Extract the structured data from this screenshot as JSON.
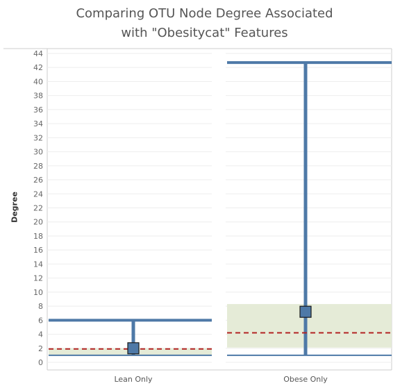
{
  "chart_data": {
    "type": "box",
    "title_line1": "Comparing OTU Node Degree Associated",
    "title_line2": "with \"Obesitycat\" Features",
    "ylabel": "Degree",
    "ylim": [
      0,
      45
    ],
    "yticks": [
      0,
      2,
      4,
      6,
      8,
      10,
      12,
      14,
      16,
      18,
      20,
      22,
      24,
      26,
      28,
      30,
      32,
      34,
      36,
      38,
      40,
      42,
      44
    ],
    "grid": true,
    "categories": [
      "Lean Only",
      "Obese Only"
    ],
    "series": [
      {
        "category": "Lean Only",
        "min": 1,
        "max": 6,
        "band_low": 1,
        "band_high": 2,
        "mean": 1.9,
        "median": 2
      },
      {
        "category": "Obese Only",
        "min": 1,
        "max": 42.7,
        "band_low": 2.1,
        "band_high": 8.3,
        "mean": 4.2,
        "median": 7.2
      }
    ],
    "colors": {
      "whisker": "#4e79a7",
      "band": "#e5ebd7",
      "mean_line": "#b22222",
      "marker": "#4e79a7",
      "grid": "#eeeeee"
    }
  }
}
